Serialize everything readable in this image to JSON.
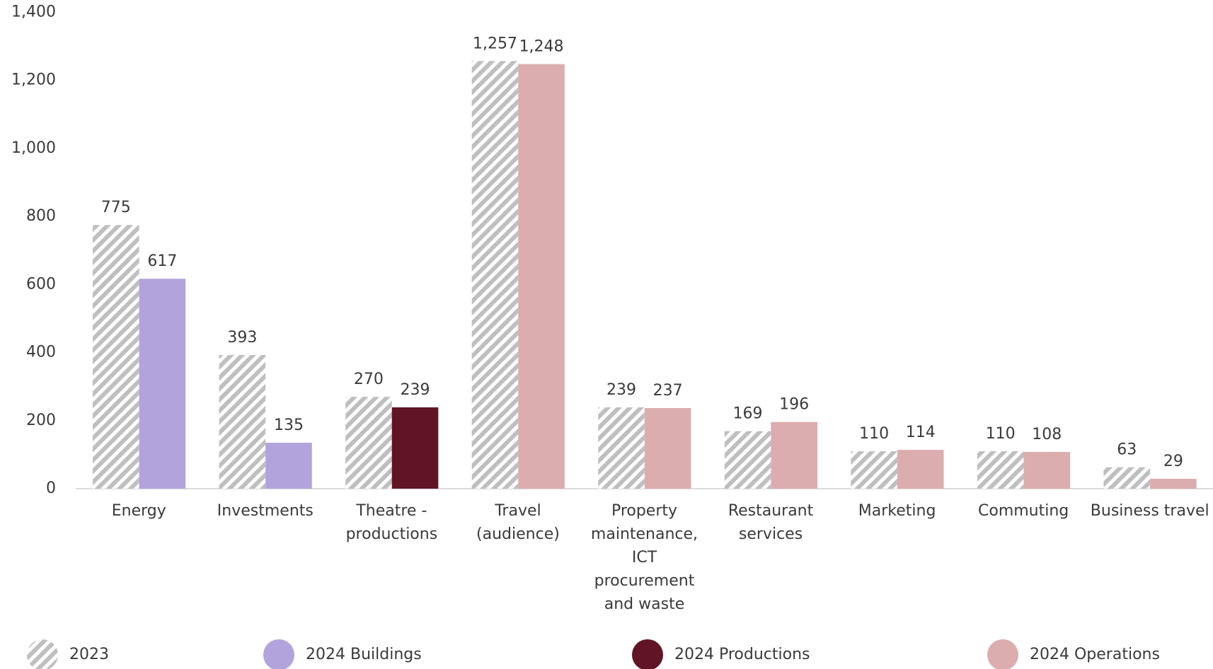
{
  "chart_data": {
    "type": "bar",
    "categories": [
      "Energy",
      "Investments",
      "Theatre - productions",
      "Travel (audience)",
      "Property maintenance, ICT procurement and waste",
      "Restaurant services",
      "Marketing",
      "Commuting",
      "Business travel"
    ],
    "series": [
      {
        "name": "2023",
        "color": "#bfbfbf",
        "hatch": true,
        "values": [
          775,
          393,
          270,
          1257,
          239,
          169,
          110,
          110,
          63
        ],
        "value_labels": [
          "775",
          "393",
          "270",
          "1,257",
          "239",
          "169",
          "110",
          "110",
          "63"
        ]
      },
      {
        "name": "2024 Buildings",
        "color": "#b3a3dc",
        "values": [
          617,
          135,
          null,
          null,
          null,
          null,
          null,
          null,
          null
        ]
      },
      {
        "name": "2024 Productions",
        "color": "#621427",
        "values": [
          null,
          null,
          239,
          null,
          null,
          null,
          null,
          null,
          null
        ]
      },
      {
        "name": "2024 Operations",
        "color": "#dbadaf",
        "values": [
          null,
          null,
          null,
          1248,
          237,
          196,
          114,
          108,
          29
        ],
        "value_labels": [
          null,
          null,
          null,
          "1,248",
          "237",
          "196",
          "114",
          "108",
          "29"
        ]
      }
    ],
    "ylim": [
      0,
      1400
    ],
    "yticks": [
      0,
      200,
      400,
      600,
      800,
      {
        "value": 1000,
        "label": "1,000"
      },
      {
        "value": 1200,
        "label": "1,200"
      },
      {
        "value": 1400,
        "label": "1,400"
      }
    ],
    "grid": false,
    "legend": "bottom"
  }
}
